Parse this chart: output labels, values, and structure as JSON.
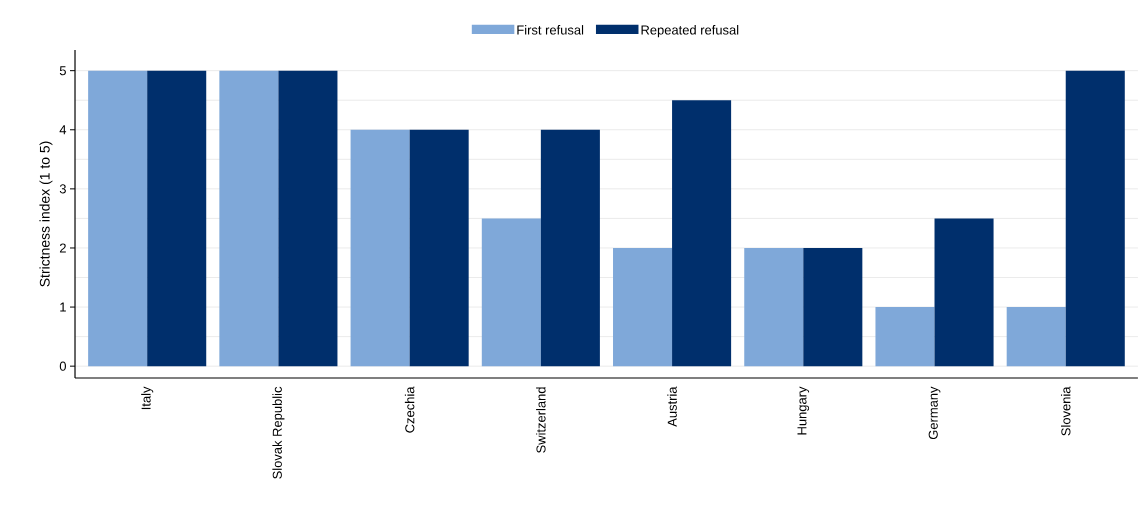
{
  "chart_data": {
    "type": "bar",
    "ylabel": "Strictness index (1 to 5)",
    "categories": [
      "Italy",
      "Slovak Republic",
      "Czechia",
      "Switzerland",
      "Austria",
      "Hungary",
      "Germany",
      "Slovenia"
    ],
    "series": [
      {
        "name": "First refusal",
        "color": "#7fa8d9",
        "values": [
          5,
          5,
          4,
          2.5,
          2,
          2,
          1,
          1
        ]
      },
      {
        "name": "Repeated refusal",
        "color": "#002f6c",
        "values": [
          5,
          5,
          4,
          4,
          4.5,
          2,
          2.5,
          5
        ]
      }
    ],
    "ylim": [
      -0.2,
      5.35
    ],
    "yticks": [
      0,
      1,
      2,
      3,
      4,
      5
    ],
    "grid": "y",
    "legend": "top"
  }
}
